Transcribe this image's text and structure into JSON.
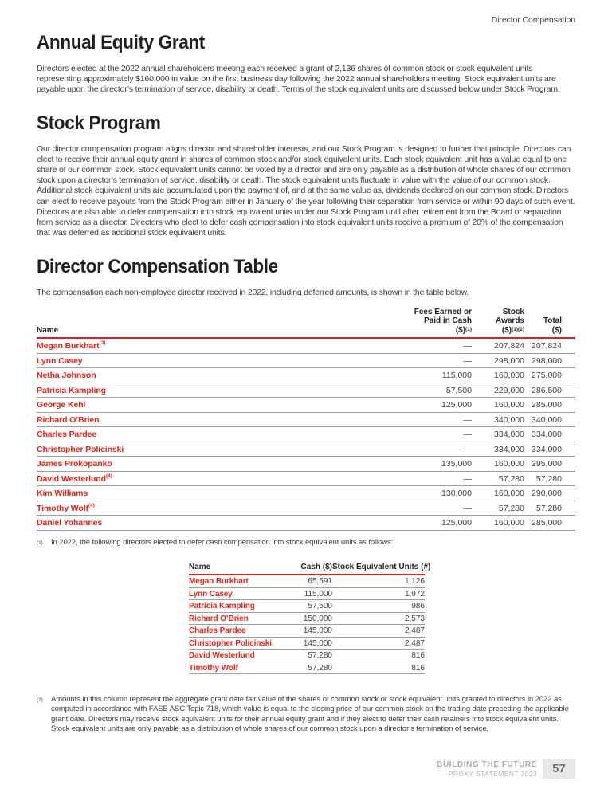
{
  "colors": {
    "accent_red": "#e2231a",
    "body_text": "#3b3b3d",
    "heading_text": "#231f20",
    "row_line_gray": "#9d9fa2",
    "footer_gray": "#a7a9ac",
    "page_box_bg": "#e7e8e9"
  },
  "page_header": {
    "section_label": "Director Compensation"
  },
  "sections": {
    "annual_equity_grant": {
      "heading": "Annual Equity Grant",
      "body": "Directors elected at the 2022 annual shareholders meeting each received a grant of 2,136 shares of common stock or stock equivalent units representing approximately $160,000 in value on the first business day following the 2022 annual shareholders meeting. Stock equivalent units are payable upon the director’s termination of service, disability or death. Terms of the stock equivalent units are discussed below under Stock Program."
    },
    "stock_program": {
      "heading": "Stock Program",
      "body": "Our director compensation program aligns director and shareholder interests, and our Stock Program is designed to further that principle. Directors can elect to receive their annual equity grant in shares of common stock and/or stock equivalent units. Each stock equivalent unit has a value equal to one share of our common stock. Stock equivalent units cannot be voted by a director and are only payable as a distribution of whole shares of our common stock upon a director’s termination of service, disability or death. The stock equivalent units fluctuate in value with the value of our common stock. Additional stock equivalent units are accumulated upon the payment of, and at the same value as, dividends declared on our common stock. Directors can elect to receive payouts from the Stock Program either in January of the year following their separation from service or within 90 days of such event. Directors are also able to defer compensation into stock equivalent units under our Stock Program until after retirement from the Board or separation from service as a director. Directors who elect to defer cash compensation into stock equivalent units receive a premium of 20% of the compensation that was deferred as additional stock equivalent units."
    },
    "director_compensation_table": {
      "heading": "Director Compensation Table",
      "intro": "The compensation each non-employee director received in 2022, including deferred amounts, is shown in the table below."
    }
  },
  "comp_table": {
    "header": {
      "name": "Name",
      "fees": {
        "l1": "Fees Earned or",
        "l2": "Paid in Cash",
        "l3": "($)",
        "sup": "(1)"
      },
      "stock": {
        "l1": "Stock",
        "l2": "Awards",
        "l3": "($)",
        "sup": "(1)(2)"
      },
      "total": {
        "l1": "Total",
        "l2": "($)"
      }
    },
    "rows": [
      {
        "name": "Megan Burkhart",
        "sup": "(3)",
        "fees": "—",
        "stock": "207,824",
        "total": "207,824"
      },
      {
        "name": "Lynn Casey",
        "sup": "",
        "fees": "—",
        "stock": "298,000",
        "total": "298,000"
      },
      {
        "name": "Netha Johnson",
        "sup": "",
        "fees": "115,000",
        "stock": "160,000",
        "total": "275,000"
      },
      {
        "name": "Patricia Kampling",
        "sup": "",
        "fees": "57,500",
        "stock": "229,000",
        "total": "286,500"
      },
      {
        "name": "George Kehl",
        "sup": "",
        "fees": "125,000",
        "stock": "160,000",
        "total": "285,000"
      },
      {
        "name": "Richard O’Brien",
        "sup": "",
        "fees": "—",
        "stock": "340,000",
        "total": "340,000"
      },
      {
        "name": "Charles Pardee",
        "sup": "",
        "fees": "—",
        "stock": "334,000",
        "total": "334,000"
      },
      {
        "name": "Christopher Policinski",
        "sup": "",
        "fees": "—",
        "stock": "334,000",
        "total": "334,000"
      },
      {
        "name": "James Prokopanko",
        "sup": "",
        "fees": "135,000",
        "stock": "160,000",
        "total": "295,000"
      },
      {
        "name": "David Westerlund",
        "sup": "(4)",
        "fees": "—",
        "stock": "57,280",
        "total": "57,280"
      },
      {
        "name": "Kim Williams",
        "sup": "",
        "fees": "130,000",
        "stock": "160,000",
        "total": "290,000"
      },
      {
        "name": "Timothy Wolf",
        "sup": "(4)",
        "fees": "—",
        "stock": "57,280",
        "total": "57,280"
      },
      {
        "name": "Daniel Yohannes",
        "sup": "",
        "fees": "125,000",
        "stock": "160,000",
        "total": "285,000"
      }
    ]
  },
  "footnotes": [
    {
      "marker": "(1)",
      "text": "In 2022, the following directors elected to defer cash compensation into stock equivalent units as follows:"
    },
    {
      "marker": "(2)",
      "text": "Amounts in this column represent the aggregate grant date fair value of the shares of common stock or stock equivalent units granted to directors in 2022 as computed in accordance with FASB ASC Topic 718, which value is equal to the closing price of our common stock on the trading date preceding the applicable grant date. Directors may receive stock equivalent units for their annual equity grant and if they elect to defer their cash retainers into stock equivalent units. Stock equivalent units are only payable as a distribution of whole shares of our common stock upon a director’s termination of service,"
    }
  ],
  "deferral_table": {
    "header": {
      "name": "Name",
      "cash": "Cash ($)",
      "units": "Stock Equivalent Units (#)"
    },
    "rows": [
      {
        "name": "Megan Burkhart",
        "cash": "65,591",
        "units": "1,126"
      },
      {
        "name": "Lynn Casey",
        "cash": "115,000",
        "units": "1,972"
      },
      {
        "name": "Patricia Kampling",
        "cash": "57,500",
        "units": "986"
      },
      {
        "name": "Richard O’Brien",
        "cash": "150,000",
        "units": "2,573"
      },
      {
        "name": "Charles Pardee",
        "cash": "145,000",
        "units": "2,487"
      },
      {
        "name": "Christopher Policinski",
        "cash": "145,000",
        "units": "2,487"
      },
      {
        "name": "David Westerlund",
        "cash": "57,280",
        "units": "816"
      },
      {
        "name": "Timothy Wolf",
        "cash": "57,280",
        "units": "816"
      }
    ]
  },
  "footer": {
    "line1": "BUILDING THE FUTURE",
    "line2": "PROXY STATEMENT 2023",
    "page_number": "57"
  }
}
